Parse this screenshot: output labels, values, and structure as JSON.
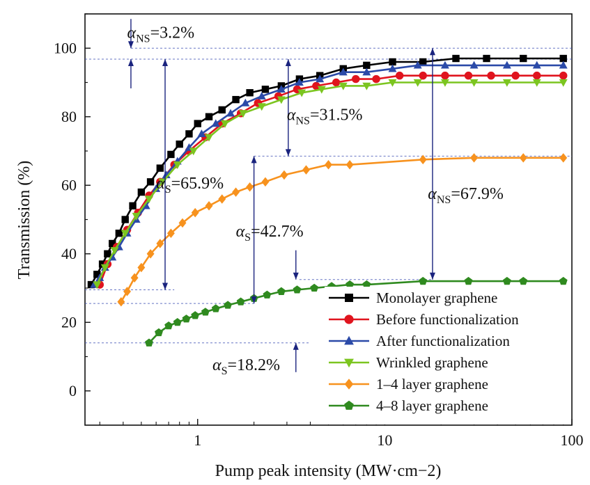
{
  "chart_data": {
    "type": "line",
    "xlabel": "Pump peak intensity (MW·cm−2)",
    "ylabel": "Transmission (%)",
    "xscale": "log",
    "xlim": [
      0.25,
      100
    ],
    "ylim": [
      -10,
      110
    ],
    "xticks": [
      {
        "value": 1,
        "label": "1"
      },
      {
        "value": 10,
        "label": "10"
      },
      {
        "value": 100,
        "label": "100"
      }
    ],
    "yticks": [
      {
        "value": 0,
        "label": "0"
      },
      {
        "value": 20,
        "label": "20"
      },
      {
        "value": 40,
        "label": "40"
      },
      {
        "value": 60,
        "label": "60"
      },
      {
        "value": 80,
        "label": "80"
      },
      {
        "value": 100,
        "label": "100"
      }
    ],
    "legend_position": "bottom-right",
    "series": [
      {
        "name": "Monolayer graphene",
        "color": "#000000",
        "marker": "square",
        "x": [
          0.27,
          0.29,
          0.31,
          0.33,
          0.35,
          0.38,
          0.41,
          0.45,
          0.5,
          0.56,
          0.63,
          0.72,
          0.8,
          0.9,
          1.0,
          1.15,
          1.35,
          1.6,
          1.9,
          2.3,
          2.8,
          3.5,
          4.5,
          6.0,
          8.0,
          11,
          16,
          24,
          35,
          55,
          90
        ],
        "y": [
          31,
          34,
          37,
          40,
          43,
          46,
          50,
          54,
          58,
          61,
          65,
          69,
          72,
          75,
          78,
          80,
          82,
          85,
          87,
          88,
          89,
          91,
          92,
          94,
          95,
          96,
          96,
          97,
          97,
          97,
          97
        ]
      },
      {
        "name": "Before functionalization",
        "color": "#e0141e",
        "marker": "circle",
        "x": [
          0.3,
          0.33,
          0.37,
          0.42,
          0.48,
          0.55,
          0.63,
          0.75,
          0.9,
          1.1,
          1.35,
          1.7,
          2.1,
          2.7,
          3.4,
          4.3,
          5.5,
          7.0,
          9.0,
          12,
          16,
          21,
          28,
          37,
          50,
          65,
          90
        ],
        "y": [
          31,
          37,
          42,
          47,
          52,
          57,
          61,
          66,
          70,
          74,
          78,
          81,
          84,
          86,
          88,
          89,
          90,
          91,
          91,
          92,
          92,
          92,
          92,
          92,
          92,
          92,
          92
        ]
      },
      {
        "name": "After functionalization",
        "color": "#2b4aa8",
        "marker": "triangle-up",
        "x": [
          0.28,
          0.3,
          0.32,
          0.35,
          0.38,
          0.42,
          0.47,
          0.53,
          0.6,
          0.68,
          0.78,
          0.9,
          1.05,
          1.25,
          1.5,
          1.8,
          2.2,
          2.8,
          3.5,
          4.5,
          6.0,
          8.0,
          11,
          15,
          21,
          30,
          45,
          65,
          90
        ],
        "y": [
          31,
          33,
          36,
          39,
          42,
          46,
          50,
          54,
          59,
          63,
          67,
          71,
          75,
          78,
          81,
          84,
          86,
          88,
          90,
          91,
          93,
          93,
          94,
          95,
          95,
          95,
          95,
          95,
          95
        ]
      },
      {
        "name": "Wrinkled graphene",
        "color": "#7cc520",
        "marker": "triangle-down",
        "x": [
          0.29,
          0.32,
          0.36,
          0.41,
          0.47,
          0.55,
          0.65,
          0.78,
          0.95,
          1.15,
          1.4,
          1.75,
          2.2,
          2.8,
          3.6,
          4.6,
          6.0,
          8.0,
          11,
          15,
          21,
          30,
          45,
          65,
          90
        ],
        "y": [
          31,
          36,
          41,
          46,
          51,
          56,
          61,
          66,
          70,
          74,
          78,
          81,
          83,
          85,
          87,
          88,
          89,
          89,
          90,
          90,
          90,
          90,
          90,
          90,
          90
        ]
      },
      {
        "name": "1–4 layer graphene",
        "color": "#f7921e",
        "marker": "diamond",
        "x": [
          0.39,
          0.42,
          0.46,
          0.5,
          0.56,
          0.63,
          0.72,
          0.83,
          0.97,
          1.15,
          1.35,
          1.6,
          1.9,
          2.3,
          2.9,
          3.8,
          5.0,
          6.5,
          16,
          30,
          55,
          90
        ],
        "y": [
          26,
          29,
          33,
          36,
          40,
          43,
          46,
          49,
          52,
          54,
          56,
          58,
          59.5,
          61,
          63,
          64.5,
          66,
          66,
          67.5,
          68,
          68,
          68
        ]
      },
      {
        "name": "4–8 layer graphene",
        "color": "#2f8a1f",
        "marker": "pentagon",
        "x": [
          0.55,
          0.62,
          0.7,
          0.78,
          0.87,
          0.97,
          1.1,
          1.25,
          1.45,
          1.7,
          2.0,
          2.35,
          2.8,
          3.4,
          4.2,
          5.2,
          6.5,
          8.0,
          16,
          28,
          45,
          55,
          90
        ],
        "y": [
          14,
          17,
          19,
          20,
          21,
          22,
          23,
          24,
          25,
          26,
          27,
          28,
          29,
          29.5,
          30,
          30.5,
          31,
          31,
          32,
          32,
          32,
          32,
          32
        ]
      }
    ],
    "reference_lines": [
      {
        "y": 100,
        "x_from": 0.44,
        "x_to": 100
      },
      {
        "y": 96.8,
        "x_from": 0.25,
        "x_to": 100
      },
      {
        "y": 68.5,
        "x_from": 2.0,
        "x_to": 100
      },
      {
        "y": 29.5,
        "x_from": 0.25,
        "x_to": 0.75
      },
      {
        "y": 25.5,
        "x_from": 0.25,
        "x_to": 2.0
      },
      {
        "y": 14,
        "x_from": 0.25,
        "x_to": 4.0
      },
      {
        "y": 32.5,
        "x_from": 3.5,
        "x_to": 18
      }
    ],
    "annotations": [
      {
        "symbol": "α",
        "sub": "NS",
        "value": "=3.2%",
        "x": 0.42,
        "y": 103
      },
      {
        "symbol": "α",
        "sub": "NS",
        "value": "=31.5%",
        "x": 3.0,
        "y": 79
      },
      {
        "symbol": "α",
        "sub": "S",
        "value": "=65.9%",
        "x": 0.6,
        "y": 59
      },
      {
        "symbol": "α",
        "sub": "NS",
        "value": "=67.9%",
        "x": 17,
        "y": 56
      },
      {
        "symbol": "α",
        "sub": "S",
        "value": "=42.7%",
        "x": 1.6,
        "y": 45
      },
      {
        "symbol": "α",
        "sub": "S",
        "value": "=18.2%",
        "x": 1.2,
        "y": 6
      }
    ],
    "arrows": [
      {
        "x": 0.44,
        "y_from": 96.8,
        "y_to": 100,
        "style": "inward"
      },
      {
        "x": 0.67,
        "y_from": 29.5,
        "y_to": 96.8,
        "style": "both"
      },
      {
        "x": 3.05,
        "y_from": 68.5,
        "y_to": 96.8,
        "style": "both"
      },
      {
        "x": 18,
        "y_from": 32.5,
        "y_to": 100,
        "style": "both"
      },
      {
        "x": 2.0,
        "y_from": 25.5,
        "y_to": 68.5,
        "style": "both"
      },
      {
        "x": 3.35,
        "y_from": 14,
        "y_to": 32.5,
        "style": "inward"
      }
    ]
  }
}
